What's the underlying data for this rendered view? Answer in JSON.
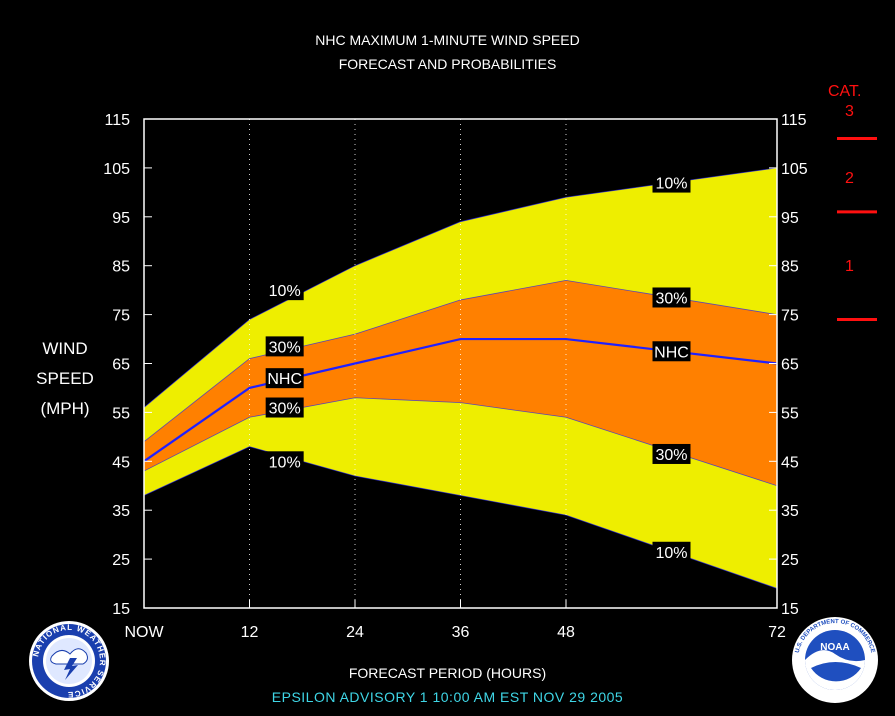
{
  "title_line1": "NHC MAXIMUM 1-MINUTE WIND SPEED",
  "title_line2": "FORECAST AND PROBABILITIES",
  "ylabel": [
    "WIND",
    "SPEED",
    "(MPH)"
  ],
  "xlabel": "FORECAST PERIOD (HOURS)",
  "advisory": "EPSILON   ADVISORY  1  10:00  AM  EST  NOV 29  2005",
  "category_legend": {
    "heading": "CAT.",
    "items": [
      {
        "label": "3"
      },
      {
        "label": "2"
      },
      {
        "label": "1"
      }
    ],
    "thresholds_mph": [
      111,
      96,
      74
    ],
    "color": "#ff1010"
  },
  "logos": {
    "left": "nws-logo",
    "left_text": "NATIONAL WEATHER SERVICE",
    "right": "noaa-logo",
    "right_text": "NOAA",
    "right_ring_text": "U.S. DEPARTMENT OF COMMERCE"
  },
  "colors": {
    "background": "#000000",
    "outer_band": "#eeee00",
    "inner_band": "#ff8000",
    "nhc_line": "#2020ff",
    "band_edge": "#1a1aff",
    "label_bg": "#000000",
    "label_fg": "#ffffff",
    "axis": "#ffffff"
  },
  "chart_data": {
    "type": "area",
    "x_tick_labels": [
      "NOW",
      "12",
      "24",
      "36",
      "48",
      "72"
    ],
    "x": [
      0,
      12,
      24,
      36,
      48,
      72
    ],
    "xlim": [
      0,
      72
    ],
    "ylim": [
      15,
      115
    ],
    "y_ticks": [
      15,
      25,
      35,
      45,
      55,
      65,
      75,
      85,
      95,
      105,
      115
    ],
    "grid_x": true,
    "series": [
      {
        "name": "10%",
        "role": "upper_10",
        "values": [
          56,
          74,
          85,
          94,
          99,
          105
        ]
      },
      {
        "name": "30%",
        "role": "upper_30",
        "values": [
          49,
          66,
          71,
          78,
          82,
          75
        ]
      },
      {
        "name": "NHC",
        "role": "nhc",
        "values": [
          45,
          60,
          65,
          70,
          70,
          65
        ]
      },
      {
        "name": "30%",
        "role": "lower_30",
        "values": [
          43,
          54,
          58,
          57,
          54,
          40
        ]
      },
      {
        "name": "10%",
        "role": "lower_10",
        "values": [
          38,
          48,
          42,
          38,
          34,
          19
        ]
      }
    ],
    "annotations": [
      {
        "text": "10%",
        "x": 16,
        "y": 80
      },
      {
        "text": "30%",
        "x": 16,
        "y": 68.5
      },
      {
        "text": "NHC",
        "x": 16,
        "y": 62
      },
      {
        "text": "30%",
        "x": 16,
        "y": 56
      },
      {
        "text": "10%",
        "x": 16,
        "y": 45
      },
      {
        "text": "10%",
        "x": 60,
        "y": 102
      },
      {
        "text": "30%",
        "x": 60,
        "y": 78.5
      },
      {
        "text": "NHC",
        "x": 60,
        "y": 67.5
      },
      {
        "text": "30%",
        "x": 60,
        "y": 46.5
      },
      {
        "text": "10%",
        "x": 60,
        "y": 26.5
      }
    ]
  }
}
